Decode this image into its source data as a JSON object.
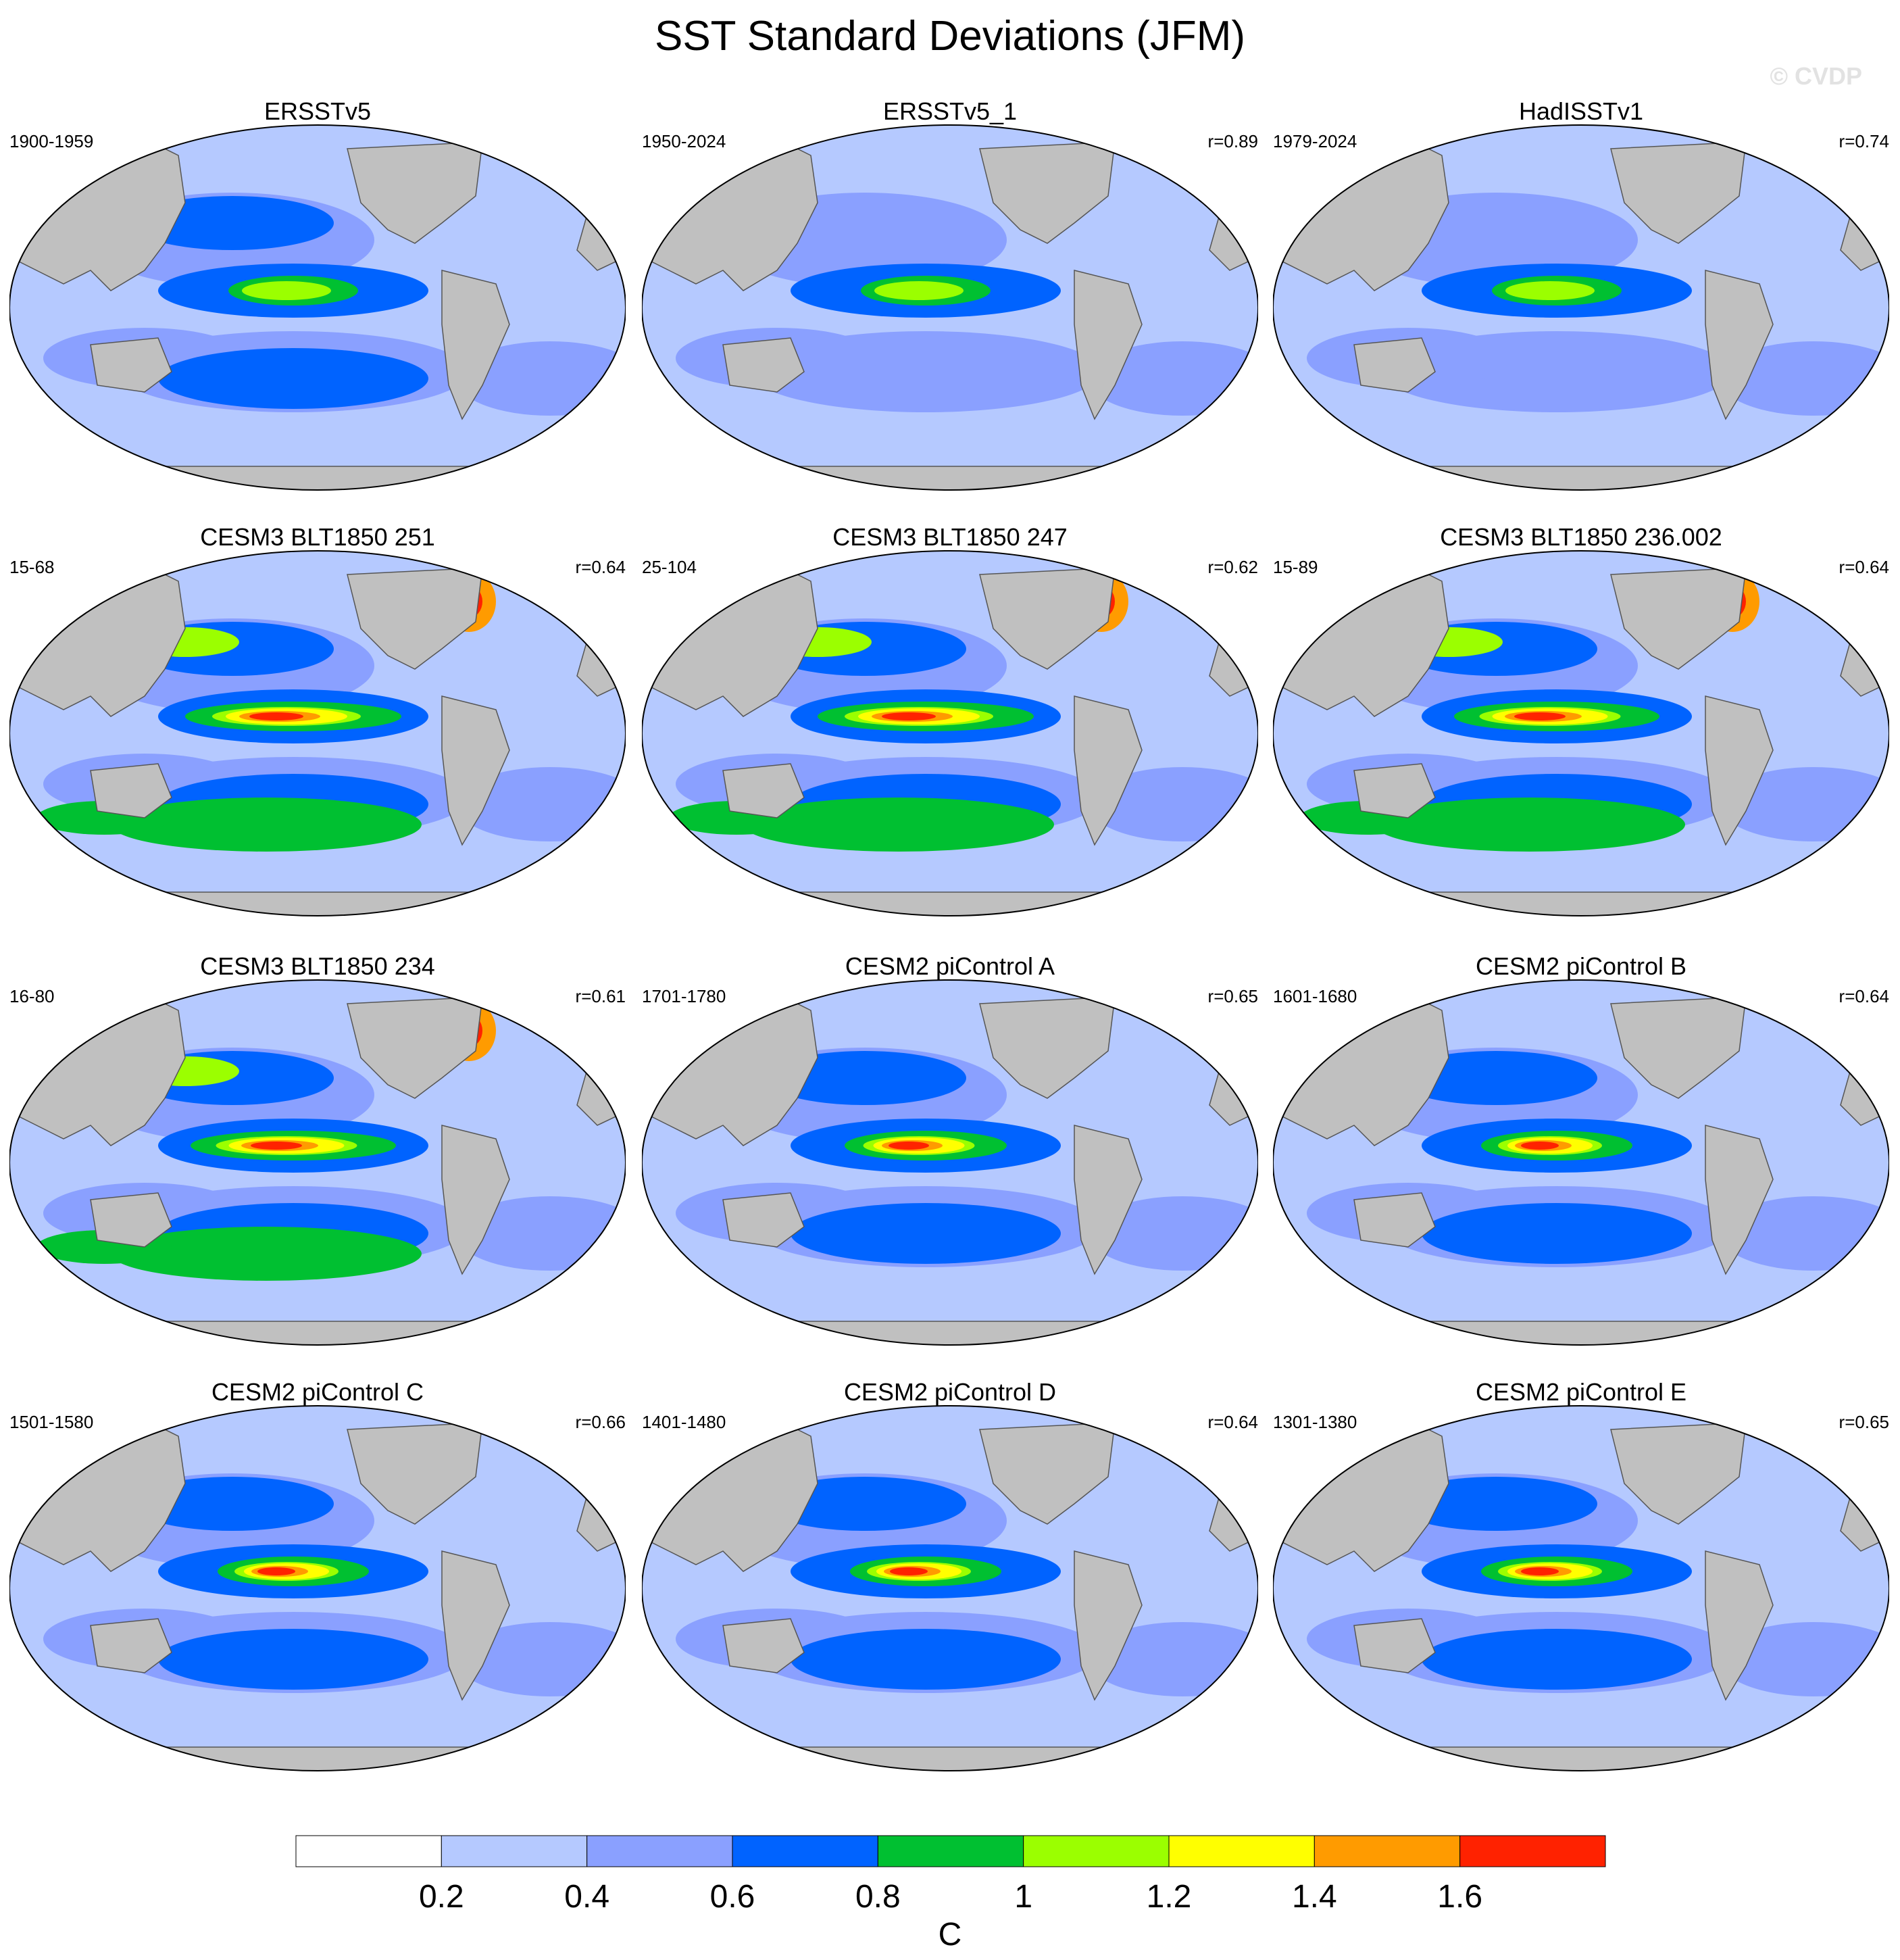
{
  "title": "SST Standard Deviations (JFM)",
  "watermark": "© CVDP",
  "colors": {
    "land": "#c0c0c0",
    "coast": "#555555",
    "levels": [
      "#ffffff",
      "#b5c9ff",
      "#8aa0ff",
      "#0063ff",
      "#00c031",
      "#9bff00",
      "#ffff00",
      "#ff9b00",
      "#ff2200"
    ]
  },
  "panels": [
    {
      "title": "ERSSTv5",
      "period": "1900-1959",
      "r": "",
      "strength": 0.55
    },
    {
      "title": "ERSSTv5_1",
      "period": "1950-2024",
      "r": "r=0.89",
      "strength": 0.5
    },
    {
      "title": "HadISSTv1",
      "period": "1979-2024",
      "r": "r=0.74",
      "strength": 0.45
    },
    {
      "title": "CESM3 BLT1850 251",
      "period": "15-68",
      "r": "r=0.64",
      "strength": 1.0
    },
    {
      "title": "CESM3 BLT1850 247",
      "period": "25-104",
      "r": "r=0.62",
      "strength": 1.0
    },
    {
      "title": "CESM3 BLT1850 236.002",
      "period": "15-89",
      "r": "r=0.64",
      "strength": 0.95
    },
    {
      "title": "CESM3 BLT1850 234",
      "period": "16-80",
      "r": "r=0.61",
      "strength": 0.95
    },
    {
      "title": "CESM2 piControl A",
      "period": "1701-1780",
      "r": "r=0.65",
      "strength": 0.75
    },
    {
      "title": "CESM2 piControl B",
      "period": "1601-1680",
      "r": "r=0.64",
      "strength": 0.7
    },
    {
      "title": "CESM2 piControl C",
      "period": "1501-1580",
      "r": "r=0.66",
      "strength": 0.7
    },
    {
      "title": "CESM2 piControl D",
      "period": "1401-1480",
      "r": "r=0.64",
      "strength": 0.7
    },
    {
      "title": "CESM2 piControl E",
      "period": "1301-1380",
      "r": "r=0.65",
      "strength": 0.7
    }
  ],
  "chart_data": {
    "type": "heatmap",
    "title": "SST Standard Deviations (JFM)",
    "projection": "Robinson, Pacific-centered",
    "unit": "C",
    "levels": [
      0.2,
      0.4,
      0.6,
      0.8,
      1,
      1.2,
      1.4,
      1.6
    ],
    "tick_labels": [
      "0.2",
      "0.4",
      "0.6",
      "0.8",
      "1",
      "1.2",
      "1.4",
      "1.6"
    ],
    "colorbar_unit": "C"
  }
}
